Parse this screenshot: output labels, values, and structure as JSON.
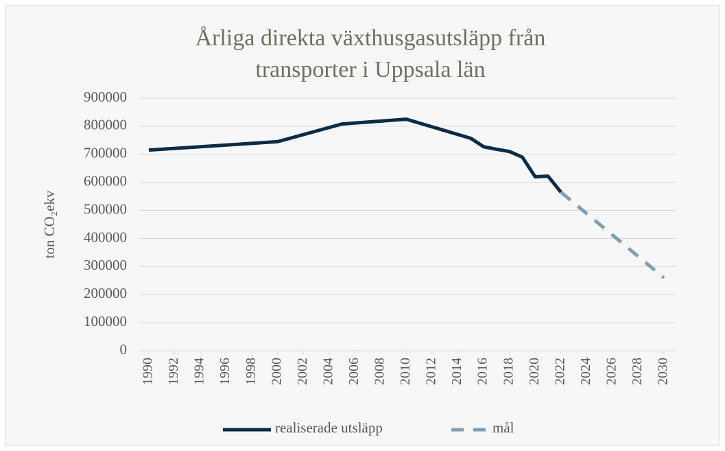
{
  "chart_data": {
    "type": "line",
    "title": [
      "Årliga direkta växthusgasutsläpp från",
      "transporter i Uppsala län"
    ],
    "y_label": "ton CO₂ekv",
    "xlim": [
      1990,
      2030
    ],
    "xticks": [
      1990,
      1992,
      1994,
      1996,
      1998,
      2000,
      2002,
      2004,
      2006,
      2008,
      2010,
      2012,
      2014,
      2016,
      2018,
      2020,
      2022,
      2024,
      2026,
      2028,
      2030
    ],
    "ylim": [
      0,
      900000
    ],
    "yticks": [
      0,
      100000,
      200000,
      300000,
      400000,
      500000,
      600000,
      700000,
      800000,
      900000
    ],
    "grid": true,
    "legend": "bottom",
    "series": [
      {
        "name": "realiserade utsläpp",
        "color": "#0d2b45",
        "dashed": false,
        "x": [
          1990,
          2000,
          2005,
          2010,
          2015,
          2016,
          2017,
          2018,
          2019,
          2020,
          2021,
          2022
        ],
        "values": [
          715000,
          745000,
          808000,
          825000,
          757000,
          727000,
          718000,
          710000,
          690000,
          620000,
          622000,
          565000
        ]
      },
      {
        "name": "mål",
        "color": "#7fa0b3",
        "dashed": true,
        "x": [
          2022,
          2030
        ],
        "values": [
          565000,
          260000
        ]
      }
    ]
  }
}
